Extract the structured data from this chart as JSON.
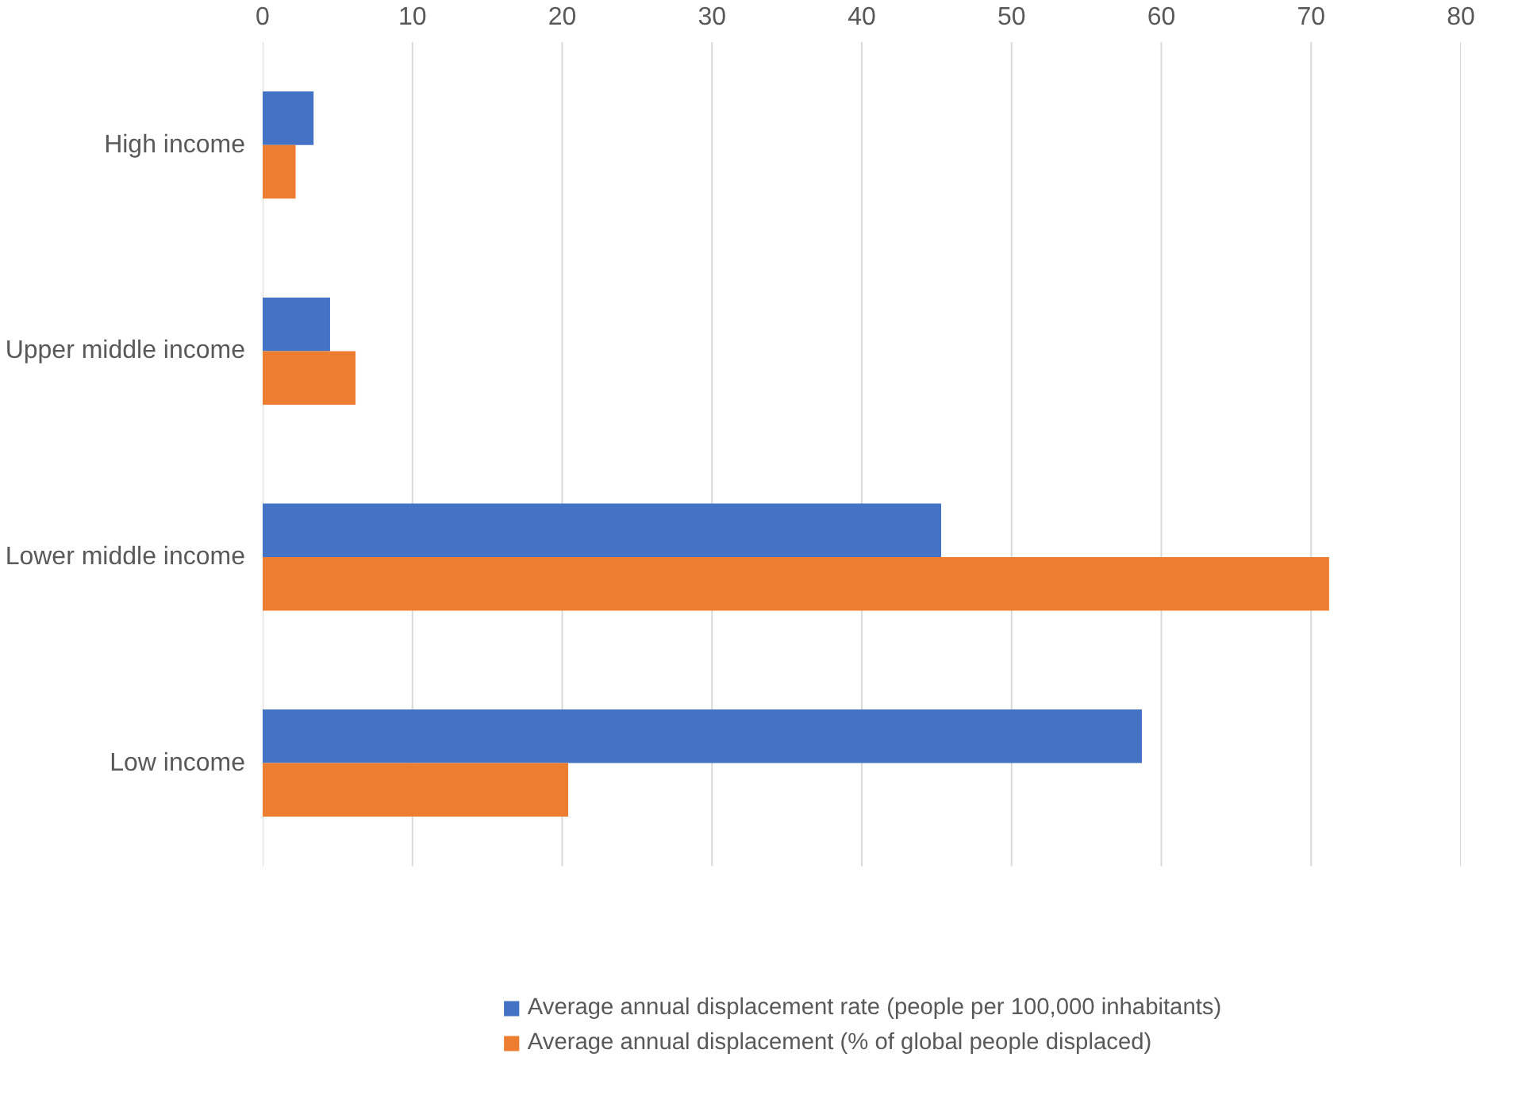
{
  "chart_data": {
    "type": "bar",
    "orientation": "horizontal",
    "categories": [
      "High income",
      "Upper middle income",
      "Lower middle income",
      "Low income"
    ],
    "series": [
      {
        "name": "Average annual displacement rate (people per 100,000 inhabitants)",
        "color": "#4472c4",
        "values": [
          3.4,
          4.5,
          45.3,
          58.7
        ]
      },
      {
        "name": "Average annual displacement (% of global people displaced)",
        "color": "#ed7d31",
        "values": [
          2.2,
          6.2,
          71.2,
          20.4
        ]
      }
    ],
    "xlim": [
      0,
      80
    ],
    "xticks": [
      0,
      10,
      20,
      30,
      40,
      50,
      60,
      70,
      80
    ],
    "grid": "x",
    "legend": "bottom"
  }
}
